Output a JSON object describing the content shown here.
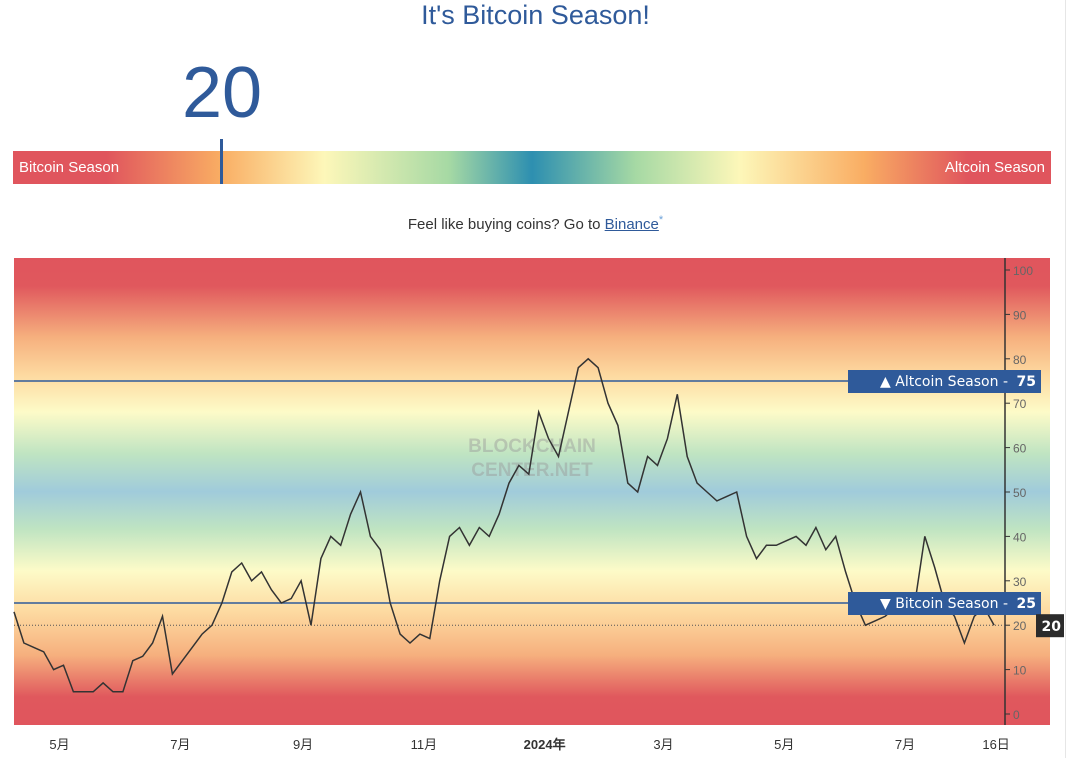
{
  "header": {
    "title": "It's Bitcoin Season!",
    "index_value": "20"
  },
  "scale_bar": {
    "left_label": "Bitcoin Season",
    "right_label": "Altcoin Season",
    "value": 20
  },
  "promo": {
    "text": "Feel like buying coins? Go to ",
    "link": "Binance",
    "asterisk": "*"
  },
  "colors": {
    "accent": "#2f5a9a",
    "line": "#333333",
    "current_badge": "#2b2b2b"
  },
  "watermark": [
    "BLOCKCHAIN",
    "CENTER.NET"
  ],
  "chart_data": {
    "type": "line",
    "ylim": [
      0,
      100
    ],
    "y_ticks": [
      "0",
      "10",
      "20",
      "30",
      "40",
      "50",
      "60",
      "70",
      "80",
      "90",
      "100"
    ],
    "x_ticks": [
      {
        "date": "2023-05-01",
        "label": "5月"
      },
      {
        "date": "2023-07-01",
        "label": "7月"
      },
      {
        "date": "2023-09-01",
        "label": "9月"
      },
      {
        "date": "2023-11-01",
        "label": "11月"
      },
      {
        "date": "2024-01-01",
        "label": "2024年"
      },
      {
        "date": "2024-03-01",
        "label": "3月"
      },
      {
        "date": "2024-05-01",
        "label": "5月"
      },
      {
        "date": "2024-07-01",
        "label": "7月"
      },
      {
        "date": "2024-08-16",
        "label": "16日"
      }
    ],
    "thresholds": [
      {
        "value": 75,
        "label": "▲ Altcoin Season",
        "value_label": "75"
      },
      {
        "value": 25,
        "label": "▼ Bitcoin Season",
        "value_label": "25"
      }
    ],
    "current": {
      "value": 20,
      "label": "20"
    },
    "x": [
      "2023-04-08",
      "2023-04-13",
      "2023-04-18",
      "2023-04-23",
      "2023-04-28",
      "2023-05-03",
      "2023-05-08",
      "2023-05-13",
      "2023-05-18",
      "2023-05-23",
      "2023-05-28",
      "2023-06-02",
      "2023-06-07",
      "2023-06-12",
      "2023-06-17",
      "2023-06-22",
      "2023-06-27",
      "2023-07-02",
      "2023-07-07",
      "2023-07-12",
      "2023-07-17",
      "2023-07-22",
      "2023-07-27",
      "2023-08-01",
      "2023-08-06",
      "2023-08-11",
      "2023-08-16",
      "2023-08-21",
      "2023-08-26",
      "2023-08-31",
      "2023-09-05",
      "2023-09-10",
      "2023-09-15",
      "2023-09-20",
      "2023-09-25",
      "2023-09-30",
      "2023-10-05",
      "2023-10-10",
      "2023-10-15",
      "2023-10-20",
      "2023-10-25",
      "2023-10-30",
      "2023-11-04",
      "2023-11-09",
      "2023-11-14",
      "2023-11-19",
      "2023-11-24",
      "2023-11-29",
      "2023-12-04",
      "2023-12-09",
      "2023-12-14",
      "2023-12-19",
      "2023-12-24",
      "2023-12-29",
      "2024-01-03",
      "2024-01-08",
      "2024-01-13",
      "2024-01-18",
      "2024-01-23",
      "2024-01-28",
      "2024-02-02",
      "2024-02-07",
      "2024-02-12",
      "2024-02-17",
      "2024-02-22",
      "2024-02-27",
      "2024-03-03",
      "2024-03-08",
      "2024-03-13",
      "2024-03-18",
      "2024-03-23",
      "2024-03-28",
      "2024-04-02",
      "2024-04-07",
      "2024-04-12",
      "2024-04-17",
      "2024-04-22",
      "2024-04-27",
      "2024-05-02",
      "2024-05-07",
      "2024-05-12",
      "2024-05-17",
      "2024-05-22",
      "2024-05-27",
      "2024-06-01",
      "2024-06-06",
      "2024-06-11",
      "2024-06-16",
      "2024-06-21",
      "2024-06-26",
      "2024-07-01",
      "2024-07-06",
      "2024-07-11",
      "2024-07-16",
      "2024-07-21",
      "2024-07-26",
      "2024-07-31",
      "2024-08-05",
      "2024-08-10",
      "2024-08-15"
    ],
    "values": [
      23,
      16,
      15,
      14,
      10,
      11,
      5,
      5,
      5,
      7,
      5,
      5,
      12,
      13,
      16,
      22,
      9,
      12,
      15,
      18,
      20,
      25,
      32,
      34,
      30,
      32,
      28,
      25,
      26,
      30,
      20,
      35,
      40,
      38,
      45,
      50,
      40,
      37,
      25,
      18,
      16,
      18,
      17,
      30,
      40,
      42,
      38,
      42,
      40,
      45,
      52,
      56,
      54,
      68,
      62,
      58,
      68,
      78,
      80,
      78,
      70,
      65,
      52,
      50,
      58,
      56,
      62,
      72,
      58,
      52,
      50,
      48,
      49,
      50,
      40,
      35,
      38,
      38,
      39,
      40,
      38,
      42,
      37,
      40,
      32,
      25,
      20,
      21,
      22,
      24,
      23,
      25,
      40,
      33,
      25,
      22,
      16,
      22,
      24,
      20
    ]
  }
}
